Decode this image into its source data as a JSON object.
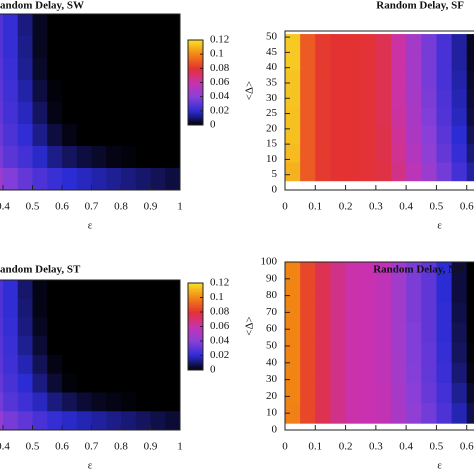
{
  "chart_data": [
    {
      "type": "heatmap",
      "title": "andom Delay, SW",
      "xlabel": "ε",
      "xlim": [
        0.3,
        1
      ],
      "xticks": [
        0.4,
        0.5,
        0.6,
        0.7,
        0.8,
        0.9,
        1
      ],
      "xbins": [
        0.3,
        0.35,
        0.4,
        0.45,
        0.5,
        0.55,
        0.6,
        0.65,
        0.7,
        0.75,
        0.8,
        0.85,
        0.9,
        0.95,
        1
      ],
      "z": [
        [
          0.03,
          0.028,
          0.022,
          0.012,
          0.003,
          0,
          0,
          0,
          0,
          0,
          0,
          0,
          0,
          0
        ],
        [
          0.031,
          0.028,
          0.022,
          0.013,
          0.003,
          0,
          0,
          0,
          0,
          0,
          0,
          0,
          0,
          0
        ],
        [
          0.032,
          0.029,
          0.023,
          0.014,
          0.004,
          0,
          0,
          0,
          0,
          0,
          0,
          0,
          0,
          0
        ],
        [
          0.033,
          0.03,
          0.024,
          0.016,
          0.006,
          0.001,
          0,
          0,
          0,
          0,
          0,
          0,
          0,
          0
        ],
        [
          0.035,
          0.031,
          0.025,
          0.018,
          0.009,
          0.002,
          0,
          0,
          0,
          0,
          0,
          0,
          0,
          0
        ],
        [
          0.038,
          0.033,
          0.027,
          0.021,
          0.013,
          0.006,
          0.002,
          0,
          0,
          0,
          0,
          0,
          0,
          0
        ],
        [
          0.042,
          0.036,
          0.03,
          0.025,
          0.019,
          0.013,
          0.009,
          0.006,
          0.004,
          0.002,
          0.001,
          0,
          0,
          0
        ],
        [
          0.05,
          0.045,
          0.038,
          0.032,
          0.027,
          0.023,
          0.02,
          0.018,
          0.016,
          0.014,
          0.012,
          0.01,
          0.008,
          0.006
        ]
      ],
      "colormap": {
        "stops": [
          0,
          0.02,
          0.04,
          0.06,
          0.08,
          0.1,
          0.12
        ],
        "colors": [
          "#000000",
          "#2c2cd4",
          "#8a40d8",
          "#c832b0",
          "#e43232",
          "#f28414",
          "#f8e028"
        ]
      },
      "colorbar": {
        "lim": [
          0,
          0.12
        ],
        "ticks": [
          0,
          0.02,
          0.04,
          0.06,
          0.08,
          0.1,
          0.12
        ]
      }
    },
    {
      "type": "heatmap",
      "title": "Random Delay, SF",
      "xlabel": "ε",
      "ylabel": "<Δ>",
      "xlim": [
        0,
        0.7
      ],
      "xticks": [
        0,
        0.1,
        0.2,
        0.3,
        0.4,
        0.5,
        0.6
      ],
      "ylim": [
        0,
        52
      ],
      "yticks": [
        0,
        5,
        10,
        15,
        20,
        25,
        30,
        35,
        40,
        45,
        50
      ],
      "xbins": [
        0,
        0.05,
        0.1,
        0.15,
        0.2,
        0.25,
        0.3,
        0.35,
        0.4,
        0.45,
        0.5,
        0.55,
        0.6,
        0.65,
        0.7
      ],
      "ybins": [
        51,
        45,
        39,
        33,
        27,
        21,
        15,
        9,
        3
      ],
      "z": [
        [
          0.115,
          0.09,
          0.082,
          0.08,
          0.08,
          0.079,
          0.075,
          0.062,
          0.048,
          0.036,
          0.026,
          0.015,
          0.003,
          0
        ],
        [
          0.115,
          0.09,
          0.082,
          0.08,
          0.08,
          0.079,
          0.075,
          0.062,
          0.048,
          0.036,
          0.026,
          0.015,
          0.003,
          0
        ],
        [
          0.114,
          0.09,
          0.082,
          0.08,
          0.08,
          0.079,
          0.075,
          0.062,
          0.048,
          0.036,
          0.026,
          0.016,
          0.004,
          0
        ],
        [
          0.114,
          0.09,
          0.082,
          0.08,
          0.08,
          0.079,
          0.075,
          0.062,
          0.049,
          0.037,
          0.027,
          0.017,
          0.005,
          0
        ],
        [
          0.113,
          0.09,
          0.082,
          0.08,
          0.08,
          0.079,
          0.075,
          0.063,
          0.05,
          0.038,
          0.028,
          0.018,
          0.006,
          0
        ],
        [
          0.113,
          0.09,
          0.082,
          0.08,
          0.08,
          0.079,
          0.076,
          0.064,
          0.051,
          0.04,
          0.03,
          0.02,
          0.008,
          0.001
        ],
        [
          0.112,
          0.09,
          0.082,
          0.08,
          0.08,
          0.079,
          0.076,
          0.065,
          0.053,
          0.042,
          0.032,
          0.022,
          0.011,
          0.003
        ],
        [
          0.11,
          0.09,
          0.082,
          0.08,
          0.08,
          0.079,
          0.077,
          0.067,
          0.056,
          0.045,
          0.035,
          0.025,
          0.015,
          0.006
        ]
      ],
      "colormap": {
        "stops": [
          0,
          0.02,
          0.04,
          0.06,
          0.08,
          0.1,
          0.12
        ],
        "colors": [
          "#000000",
          "#2c2cd4",
          "#8a40d8",
          "#c832b0",
          "#e43232",
          "#f28414",
          "#f8e028"
        ]
      }
    },
    {
      "type": "heatmap",
      "title": "andom Delay, ST",
      "xlabel": "ε",
      "xlim": [
        0.3,
        1
      ],
      "xticks": [
        0.4,
        0.5,
        0.6,
        0.7,
        0.8,
        0.9,
        1
      ],
      "xbins": [
        0.3,
        0.35,
        0.4,
        0.45,
        0.5,
        0.55,
        0.6,
        0.65,
        0.7,
        0.75,
        0.8,
        0.85,
        0.9,
        0.95,
        1
      ],
      "z": [
        [
          0.03,
          0.027,
          0.021,
          0.01,
          0.002,
          0,
          0,
          0,
          0,
          0,
          0,
          0,
          0,
          0
        ],
        [
          0.031,
          0.027,
          0.021,
          0.011,
          0.002,
          0,
          0,
          0,
          0,
          0,
          0,
          0,
          0,
          0
        ],
        [
          0.031,
          0.028,
          0.022,
          0.012,
          0.003,
          0,
          0,
          0,
          0,
          0,
          0,
          0,
          0,
          0
        ],
        [
          0.032,
          0.029,
          0.023,
          0.014,
          0.005,
          0,
          0,
          0,
          0,
          0,
          0,
          0,
          0,
          0
        ],
        [
          0.034,
          0.03,
          0.024,
          0.017,
          0.008,
          0.002,
          0,
          0,
          0,
          0,
          0,
          0,
          0,
          0
        ],
        [
          0.037,
          0.032,
          0.026,
          0.02,
          0.012,
          0.005,
          0.001,
          0,
          0,
          0,
          0,
          0,
          0,
          0
        ],
        [
          0.041,
          0.035,
          0.029,
          0.024,
          0.018,
          0.012,
          0.008,
          0.005,
          0.003,
          0.002,
          0.001,
          0,
          0,
          0
        ],
        [
          0.048,
          0.043,
          0.036,
          0.031,
          0.026,
          0.022,
          0.019,
          0.017,
          0.015,
          0.013,
          0.011,
          0.009,
          0.007,
          0.005
        ]
      ],
      "colormap": {
        "stops": [
          0,
          0.02,
          0.04,
          0.06,
          0.08,
          0.1,
          0.12
        ],
        "colors": [
          "#000000",
          "#2c2cd4",
          "#8a40d8",
          "#c832b0",
          "#e43232",
          "#f28414",
          "#f8e028"
        ]
      },
      "colorbar": {
        "lim": [
          0,
          0.12
        ],
        "ticks": [
          0,
          0.02,
          0.04,
          0.06,
          0.08,
          0.1,
          0.12
        ]
      }
    },
    {
      "type": "heatmap",
      "title": "Random Delay, NN",
      "xlabel": "ε",
      "ylabel": "<Δ>",
      "xlim": [
        0,
        0.7
      ],
      "xticks": [
        0,
        0.1,
        0.2,
        0.3,
        0.4,
        0.5,
        0.6
      ],
      "ylim": [
        0,
        100
      ],
      "yticks": [
        0,
        10,
        20,
        30,
        40,
        50,
        60,
        70,
        80,
        90,
        100
      ],
      "xbins": [
        0,
        0.05,
        0.1,
        0.15,
        0.2,
        0.25,
        0.3,
        0.35,
        0.4,
        0.45,
        0.5,
        0.55,
        0.6,
        0.65,
        0.7
      ],
      "ybins": [
        100,
        88,
        76,
        64,
        52,
        40,
        28,
        16,
        4
      ],
      "z": [
        [
          0.1,
          0.085,
          0.075,
          0.066,
          0.061,
          0.06,
          0.057,
          0.047,
          0.037,
          0.031,
          0.02,
          0.006,
          0,
          0
        ],
        [
          0.1,
          0.085,
          0.075,
          0.066,
          0.061,
          0.06,
          0.057,
          0.047,
          0.037,
          0.031,
          0.02,
          0.006,
          0,
          0
        ],
        [
          0.1,
          0.085,
          0.075,
          0.066,
          0.061,
          0.06,
          0.057,
          0.047,
          0.037,
          0.031,
          0.021,
          0.007,
          0,
          0
        ],
        [
          0.1,
          0.085,
          0.075,
          0.066,
          0.061,
          0.06,
          0.057,
          0.047,
          0.038,
          0.031,
          0.021,
          0.008,
          0,
          0
        ],
        [
          0.1,
          0.085,
          0.075,
          0.066,
          0.061,
          0.06,
          0.057,
          0.048,
          0.038,
          0.032,
          0.022,
          0.009,
          0.001,
          0
        ],
        [
          0.1,
          0.085,
          0.075,
          0.066,
          0.061,
          0.06,
          0.057,
          0.048,
          0.039,
          0.032,
          0.023,
          0.011,
          0.002,
          0
        ],
        [
          0.1,
          0.085,
          0.075,
          0.066,
          0.061,
          0.06,
          0.058,
          0.049,
          0.04,
          0.033,
          0.025,
          0.014,
          0.004,
          0
        ],
        [
          0.099,
          0.085,
          0.075,
          0.066,
          0.061,
          0.06,
          0.058,
          0.05,
          0.042,
          0.035,
          0.027,
          0.017,
          0.007,
          0.002
        ]
      ],
      "colormap": {
        "stops": [
          0,
          0.02,
          0.04,
          0.06,
          0.08,
          0.1,
          0.12
        ],
        "colors": [
          "#000000",
          "#2c2cd4",
          "#8a40d8",
          "#c832b0",
          "#e43232",
          "#f28414",
          "#f8e028"
        ]
      }
    }
  ]
}
